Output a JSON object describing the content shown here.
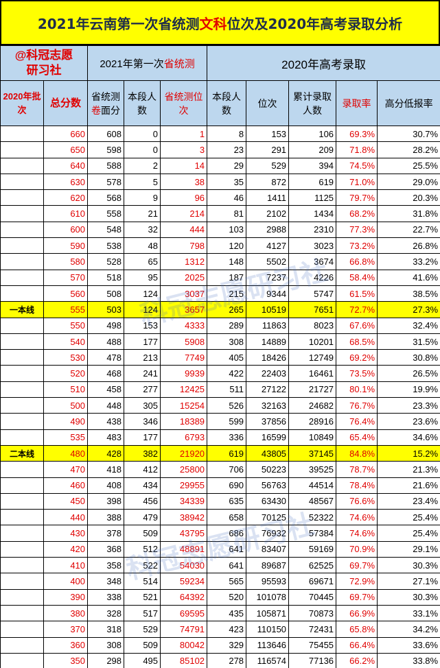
{
  "title": {
    "part1": "2021年云南第一次省统测",
    "part_red": "文科",
    "part2": "位次及2020年高考录取分析"
  },
  "brand": {
    "line1": "@科冠志愿",
    "line2": "研习社"
  },
  "group_2021": {
    "prefix": "2021年第一次",
    "red": "省统测"
  },
  "group_2020": "2020年高考录取",
  "headers": {
    "batch": "2020年批次",
    "total": "总分数",
    "paper_a": "省统测",
    "paper_b": "卷",
    "paper_c": "面分",
    "seg2021": "本段人数",
    "rank2021": "省统测位次",
    "seg2020": "本段人数",
    "rank2020": "位次",
    "cum2020": "累计录取人数",
    "rate": "录取率",
    "hirate": "高分低报率"
  },
  "rows": [
    [
      "",
      "660",
      "608",
      "0",
      "1",
      "8",
      "153",
      "106",
      "69.3%",
      "30.7%"
    ],
    [
      "",
      "650",
      "598",
      "0",
      "3",
      "23",
      "291",
      "209",
      "71.8%",
      "28.2%"
    ],
    [
      "",
      "640",
      "588",
      "2",
      "14",
      "29",
      "529",
      "394",
      "74.5%",
      "25.5%"
    ],
    [
      "",
      "630",
      "578",
      "5",
      "38",
      "35",
      "872",
      "619",
      "71.0%",
      "29.0%"
    ],
    [
      "",
      "620",
      "568",
      "9",
      "96",
      "46",
      "1411",
      "1125",
      "79.7%",
      "20.3%"
    ],
    [
      "",
      "610",
      "558",
      "21",
      "214",
      "81",
      "2102",
      "1434",
      "68.2%",
      "31.8%"
    ],
    [
      "",
      "600",
      "548",
      "32",
      "444",
      "103",
      "2988",
      "2310",
      "77.3%",
      "22.7%"
    ],
    [
      "",
      "590",
      "538",
      "48",
      "798",
      "120",
      "4127",
      "3023",
      "73.2%",
      "26.8%"
    ],
    [
      "",
      "580",
      "528",
      "65",
      "1312",
      "148",
      "5502",
      "3674",
      "66.8%",
      "33.2%"
    ],
    [
      "",
      "570",
      "518",
      "95",
      "2025",
      "187",
      "7237",
      "4226",
      "58.4%",
      "41.6%"
    ],
    [
      "",
      "560",
      "508",
      "124",
      "3037",
      "215",
      "9344",
      "5747",
      "61.5%",
      "38.5%"
    ],
    [
      "一本线",
      "555",
      "503",
      "124",
      "3657",
      "265",
      "10519",
      "7651",
      "72.7%",
      "27.3%"
    ],
    [
      "",
      "550",
      "498",
      "153",
      "4333",
      "289",
      "11863",
      "8023",
      "67.6%",
      "32.4%"
    ],
    [
      "",
      "540",
      "488",
      "177",
      "5908",
      "308",
      "14889",
      "10201",
      "68.5%",
      "31.5%"
    ],
    [
      "",
      "530",
      "478",
      "213",
      "7749",
      "405",
      "18426",
      "12749",
      "69.2%",
      "30.8%"
    ],
    [
      "",
      "520",
      "468",
      "241",
      "9939",
      "422",
      "22403",
      "16461",
      "73.5%",
      "26.5%"
    ],
    [
      "",
      "510",
      "458",
      "277",
      "12425",
      "511",
      "27122",
      "21727",
      "80.1%",
      "19.9%"
    ],
    [
      "",
      "500",
      "448",
      "305",
      "15254",
      "526",
      "32163",
      "24682",
      "76.7%",
      "23.3%"
    ],
    [
      "",
      "490",
      "438",
      "346",
      "18389",
      "599",
      "37856",
      "28916",
      "76.4%",
      "23.6%"
    ],
    [
      "",
      "535",
      "483",
      "177",
      "6793",
      "336",
      "16599",
      "10849",
      "65.4%",
      "34.6%"
    ],
    [
      "二本线",
      "480",
      "428",
      "382",
      "21920",
      "619",
      "43805",
      "37145",
      "84.8%",
      "15.2%"
    ],
    [
      "",
      "470",
      "418",
      "412",
      "25800",
      "706",
      "50223",
      "39525",
      "78.7%",
      "21.3%"
    ],
    [
      "",
      "460",
      "408",
      "434",
      "29955",
      "690",
      "56763",
      "44514",
      "78.4%",
      "21.6%"
    ],
    [
      "",
      "450",
      "398",
      "456",
      "34339",
      "635",
      "63430",
      "48567",
      "76.6%",
      "23.4%"
    ],
    [
      "",
      "440",
      "388",
      "479",
      "38942",
      "658",
      "70125",
      "52322",
      "74.6%",
      "25.4%"
    ],
    [
      "",
      "430",
      "378",
      "509",
      "43795",
      "686",
      "76932",
      "57384",
      "74.6%",
      "25.4%"
    ],
    [
      "",
      "420",
      "368",
      "512",
      "48891",
      "641",
      "83407",
      "59169",
      "70.9%",
      "29.1%"
    ],
    [
      "",
      "410",
      "358",
      "522",
      "54030",
      "641",
      "89687",
      "62525",
      "69.7%",
      "30.3%"
    ],
    [
      "",
      "400",
      "348",
      "514",
      "59234",
      "565",
      "95593",
      "69671",
      "72.9%",
      "27.1%"
    ],
    [
      "",
      "390",
      "338",
      "521",
      "64392",
      "520",
      "101078",
      "70445",
      "69.7%",
      "30.3%"
    ],
    [
      "",
      "380",
      "328",
      "517",
      "69595",
      "435",
      "105871",
      "70873",
      "66.9%",
      "33.1%"
    ],
    [
      "",
      "370",
      "318",
      "529",
      "74791",
      "423",
      "110150",
      "72431",
      "65.8%",
      "34.2%"
    ],
    [
      "",
      "360",
      "308",
      "509",
      "80042",
      "329",
      "113646",
      "75455",
      "66.4%",
      "33.6%"
    ],
    [
      "",
      "350",
      "298",
      "495",
      "85102",
      "278",
      "116574",
      "77136",
      "66.2%",
      "33.8%"
    ]
  ],
  "highlight_color": "#FFFF00",
  "header_color": "#BDD7EE",
  "accent_red": "#E00000",
  "watermark1": "科冠志愿研习社",
  "watermark2": "科冠志愿研习社"
}
